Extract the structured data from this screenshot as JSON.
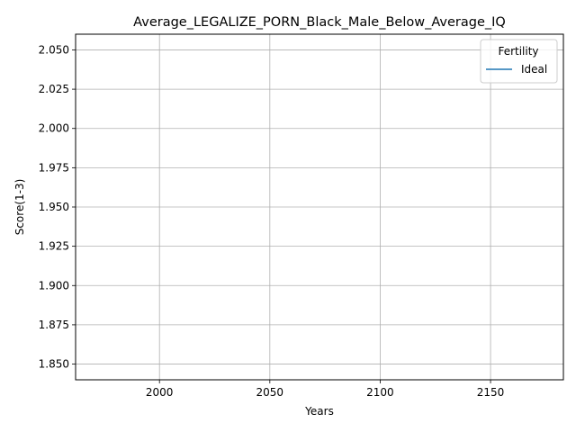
{
  "chart_data": {
    "type": "line",
    "title": "Average_LEGALIZE_PORN_Black_Male_Below_Average_IQ",
    "xlabel": "Years",
    "ylabel": "Score(1-3)",
    "xlim": [
      1962,
      2183
    ],
    "ylim": [
      1.84,
      2.06
    ],
    "xticks": [
      2000,
      2050,
      2100,
      2150
    ],
    "yticks": [
      1.85,
      1.875,
      1.9,
      1.925,
      1.95,
      1.975,
      2.0,
      2.025,
      2.05
    ],
    "ytick_labels": [
      "1.850",
      "1.875",
      "1.900",
      "1.925",
      "1.950",
      "1.975",
      "2.000",
      "2.025",
      "2.050"
    ],
    "grid": true,
    "legend": {
      "title": "Fertility",
      "placement": "top-right"
    },
    "series": [
      {
        "name": "Ideal",
        "color": "#1f77b4",
        "x": [],
        "y": []
      }
    ]
  }
}
